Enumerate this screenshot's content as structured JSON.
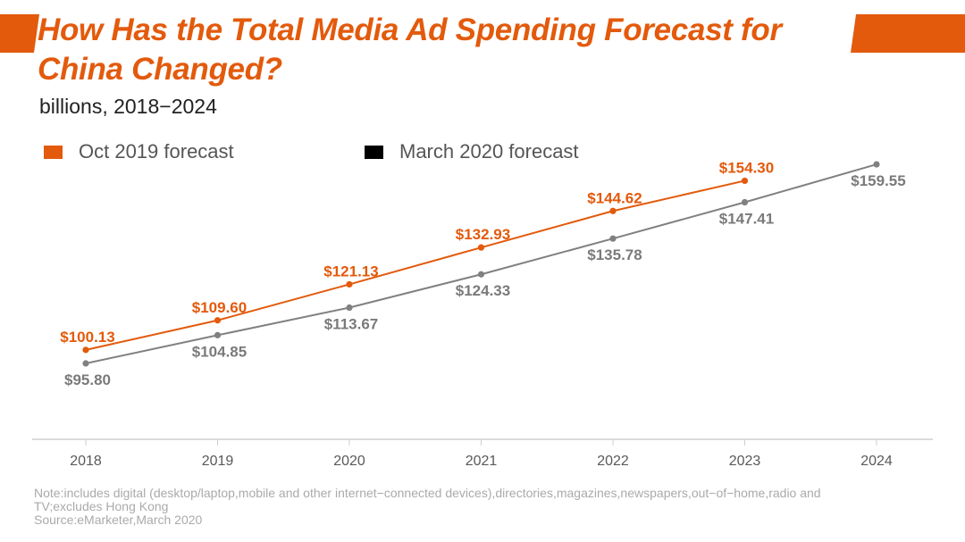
{
  "header": {
    "title": "How Has the Total Media Ad Spending Forecast for China Changed?",
    "subtitle": "billions, 2018−2024",
    "accent_color": "#e35a0c"
  },
  "legend": [
    {
      "label": "Oct 2019 forecast",
      "color": "#e35a0c"
    },
    {
      "label": "March 2020 forecast",
      "color": "#000000"
    }
  ],
  "footer": {
    "note_line1": "Note:includes digital (desktop/laptop,mobile and other internet−connected devices),directories,magazines,newspapers,out−of−home,radio and",
    "note_line2": "TV;excludes Hong Kong",
    "source": "Source:eMarketer,March 2020"
  },
  "chart_data": {
    "type": "line",
    "title": "How Has the Total Media Ad Spending Forecast for China Changed?",
    "subtitle": "billions, 2018−2024",
    "xlabel": "",
    "ylabel": "",
    "x": [
      "2018",
      "2019",
      "2020",
      "2021",
      "2022",
      "2023",
      "2024"
    ],
    "ylim": [
      71.5,
      165
    ],
    "grid": false,
    "legend_position": "top-left",
    "series": [
      {
        "name": "Oct 2019 forecast",
        "color": "#e35a0c",
        "label_color": "#e35a0c",
        "label_position": "above",
        "values": [
          100.13,
          109.6,
          121.13,
          132.93,
          144.62,
          154.3,
          null
        ],
        "labels": [
          "$100.13",
          "$109.60",
          "$121.13",
          "$132.93",
          "$144.62",
          "$154.30",
          null
        ]
      },
      {
        "name": "March 2020 forecast",
        "color": "#808080",
        "label_color": "#7a7a7a",
        "label_position": "below",
        "values": [
          95.8,
          104.85,
          113.67,
          124.33,
          135.78,
          147.41,
          159.55
        ],
        "labels": [
          "$95.80",
          "$104.85",
          "$113.67",
          "$124.33",
          "$135.78",
          "$147.41",
          "$159.55"
        ]
      }
    ]
  }
}
